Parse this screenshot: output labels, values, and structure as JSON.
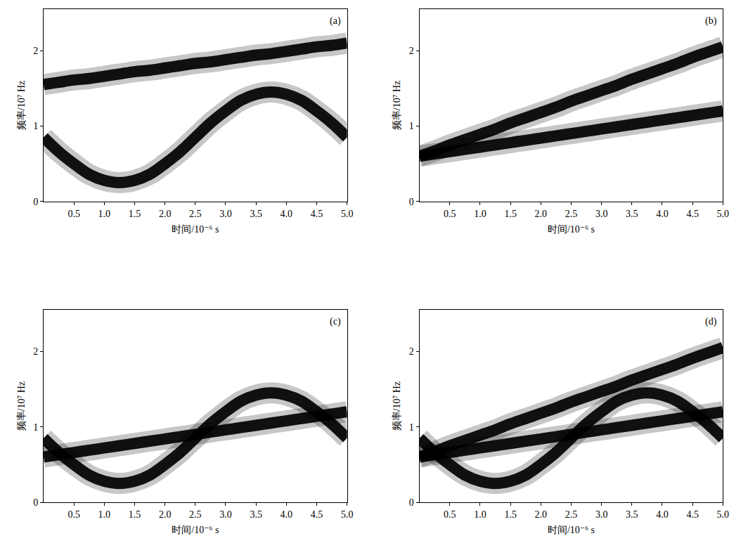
{
  "chart_data": [
    {
      "type": "line",
      "title": "(a)",
      "x_label": "时间/10⁻⁶ s",
      "y_label": "频率/10⁷ Hz",
      "x": [
        0,
        0.25,
        0.5,
        0.75,
        1,
        1.25,
        1.5,
        1.75,
        2,
        2.25,
        2.5,
        2.75,
        3,
        3.25,
        3.5,
        3.75,
        4,
        4.25,
        4.5,
        4.75,
        5
      ],
      "series": [
        {
          "color": "#000000",
          "values": [
            1.55,
            1.58,
            1.61,
            1.63,
            1.66,
            1.69,
            1.72,
            1.74,
            1.77,
            1.8,
            1.83,
            1.85,
            1.88,
            1.91,
            1.94,
            1.96,
            1.99,
            2.02,
            2.05,
            2.07,
            2.1
          ]
        },
        {
          "color": "#000000",
          "values": [
            0.85,
            0.66,
            0.5,
            0.36,
            0.28,
            0.25,
            0.28,
            0.36,
            0.5,
            0.66,
            0.85,
            1.04,
            1.2,
            1.34,
            1.42,
            1.45,
            1.42,
            1.34,
            1.2,
            1.04,
            0.85
          ]
        }
      ],
      "xlim": [
        0,
        5
      ],
      "ylim": [
        0,
        2.55
      ],
      "xticks": [
        0.5,
        {
          "value": 1,
          "label": "1.0"
        },
        1.5,
        {
          "value": 2,
          "label": "2.0"
        },
        2.5,
        {
          "value": 3,
          "label": "3.0"
        },
        3.5,
        {
          "value": 4,
          "label": "4.0"
        },
        4.5,
        {
          "value": 5,
          "label": "5.0"
        }
      ],
      "yticks": [
        0,
        1,
        2
      ],
      "grid": false
    },
    {
      "type": "line",
      "title": "(b)",
      "x_label": "时间/10⁻⁶ s",
      "y_label": "频率/10⁷ Hz",
      "x": [
        0,
        0.25,
        0.5,
        0.75,
        1,
        1.25,
        1.5,
        1.75,
        2,
        2.25,
        2.5,
        2.75,
        3,
        3.25,
        3.5,
        3.75,
        4,
        4.25,
        4.5,
        4.75,
        5
      ],
      "series": [
        {
          "color": "#000000",
          "values": [
            0.6,
            0.67,
            0.75,
            0.82,
            0.89,
            0.96,
            1.04,
            1.11,
            1.18,
            1.25,
            1.33,
            1.4,
            1.47,
            1.54,
            1.62,
            1.69,
            1.76,
            1.83,
            1.91,
            1.98,
            2.05
          ]
        },
        {
          "color": "#000000",
          "values": [
            0.6,
            0.63,
            0.66,
            0.69,
            0.72,
            0.75,
            0.78,
            0.81,
            0.84,
            0.87,
            0.9,
            0.93,
            0.96,
            0.99,
            1.02,
            1.05,
            1.08,
            1.11,
            1.14,
            1.17,
            1.2
          ]
        }
      ],
      "xlim": [
        0,
        5
      ],
      "ylim": [
        0,
        2.55
      ],
      "xticks": [
        0.5,
        {
          "value": 1,
          "label": "1.0"
        },
        1.5,
        {
          "value": 2,
          "label": "2.0"
        },
        2.5,
        {
          "value": 3,
          "label": "3.0"
        },
        3.5,
        {
          "value": 4,
          "label": "4.0"
        },
        4.5,
        {
          "value": 5,
          "label": "5.0"
        }
      ],
      "yticks": [
        0,
        1,
        2
      ],
      "grid": false
    },
    {
      "type": "line",
      "title": "(c)",
      "x_label": "时间/10⁻⁶ s",
      "y_label": "频率/10⁷ Hz",
      "x": [
        0,
        0.25,
        0.5,
        0.75,
        1,
        1.25,
        1.5,
        1.75,
        2,
        2.25,
        2.5,
        2.75,
        3,
        3.25,
        3.5,
        3.75,
        4,
        4.25,
        4.5,
        4.75,
        5
      ],
      "series": [
        {
          "color": "#000000",
          "values": [
            0.6,
            0.63,
            0.66,
            0.69,
            0.72,
            0.75,
            0.78,
            0.81,
            0.84,
            0.87,
            0.9,
            0.93,
            0.96,
            0.99,
            1.02,
            1.05,
            1.08,
            1.11,
            1.14,
            1.17,
            1.2
          ]
        },
        {
          "color": "#000000",
          "values": [
            0.85,
            0.66,
            0.5,
            0.36,
            0.28,
            0.25,
            0.28,
            0.36,
            0.5,
            0.66,
            0.85,
            1.04,
            1.2,
            1.34,
            1.42,
            1.45,
            1.42,
            1.34,
            1.2,
            1.04,
            0.85
          ]
        }
      ],
      "xlim": [
        0,
        5
      ],
      "ylim": [
        0,
        2.55
      ],
      "xticks": [
        0.5,
        {
          "value": 1,
          "label": "1.0"
        },
        1.5,
        {
          "value": 2,
          "label": "2.0"
        },
        2.5,
        {
          "value": 3,
          "label": "3.0"
        },
        3.5,
        {
          "value": 4,
          "label": "4.0"
        },
        4.5,
        {
          "value": 5,
          "label": "5.0"
        }
      ],
      "yticks": [
        0,
        1,
        2
      ],
      "grid": false
    },
    {
      "type": "line",
      "title": "(d)",
      "x_label": "时间/10⁻⁶ s",
      "y_label": "频率/10⁷ Hz",
      "x": [
        0,
        0.25,
        0.5,
        0.75,
        1,
        1.25,
        1.5,
        1.75,
        2,
        2.25,
        2.5,
        2.75,
        3,
        3.25,
        3.5,
        3.75,
        4,
        4.25,
        4.5,
        4.75,
        5
      ],
      "series": [
        {
          "color": "#000000",
          "values": [
            0.6,
            0.67,
            0.75,
            0.82,
            0.89,
            0.96,
            1.04,
            1.11,
            1.18,
            1.25,
            1.33,
            1.4,
            1.47,
            1.54,
            1.62,
            1.69,
            1.76,
            1.83,
            1.91,
            1.98,
            2.05
          ]
        },
        {
          "color": "#000000",
          "values": [
            0.6,
            0.63,
            0.66,
            0.69,
            0.72,
            0.75,
            0.78,
            0.81,
            0.84,
            0.87,
            0.9,
            0.93,
            0.96,
            0.99,
            1.02,
            1.05,
            1.08,
            1.11,
            1.14,
            1.17,
            1.2
          ]
        },
        {
          "color": "#000000",
          "values": [
            0.85,
            0.66,
            0.5,
            0.36,
            0.28,
            0.25,
            0.28,
            0.36,
            0.5,
            0.66,
            0.85,
            1.04,
            1.2,
            1.34,
            1.42,
            1.45,
            1.42,
            1.34,
            1.2,
            1.04,
            0.85
          ]
        }
      ],
      "xlim": [
        0,
        5
      ],
      "ylim": [
        0,
        2.55
      ],
      "xticks": [
        0.5,
        {
          "value": 1,
          "label": "1.0"
        },
        1.5,
        {
          "value": 2,
          "label": "2.0"
        },
        2.5,
        {
          "value": 3,
          "label": "3.0"
        },
        3.5,
        {
          "value": 4,
          "label": "4.0"
        },
        4.5,
        {
          "value": 5,
          "label": "5.0"
        }
      ],
      "yticks": [
        0,
        1,
        2
      ],
      "grid": false
    }
  ]
}
